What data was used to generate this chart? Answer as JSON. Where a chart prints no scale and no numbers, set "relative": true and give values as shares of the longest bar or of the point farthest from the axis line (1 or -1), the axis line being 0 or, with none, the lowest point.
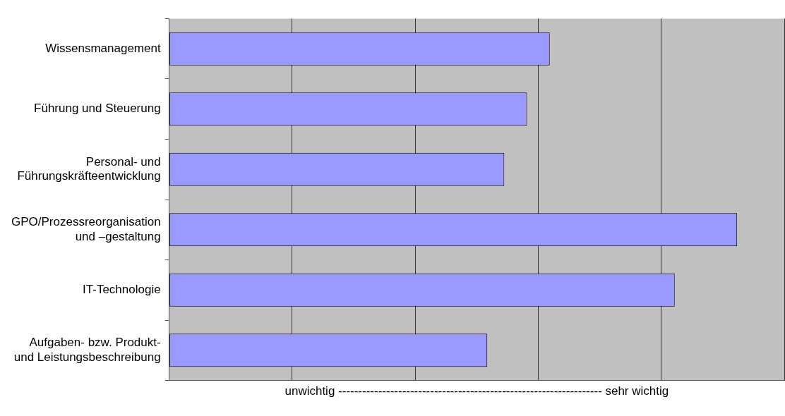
{
  "chart_data": {
    "type": "bar",
    "orientation": "horizontal",
    "relative": true,
    "xlabel": "unwichtig ------------------------------------------------------------------ sehr wichtig",
    "categories": [
      "Wissensmanagement",
      "Führung und Steuerung",
      "Personal- und\nFührungskräfteentwicklung",
      "GPO/Prozessreorganisation\nund –gestaltung",
      "IT-Technologie",
      "Aufgaben- bzw. Produkt-\nund Leistungsbeschreibung"
    ],
    "values": [
      0.67,
      0.63,
      0.59,
      1,
      0.89,
      0.56
    ],
    "color": "#9999ff",
    "grid": "x",
    "legend": false
  }
}
